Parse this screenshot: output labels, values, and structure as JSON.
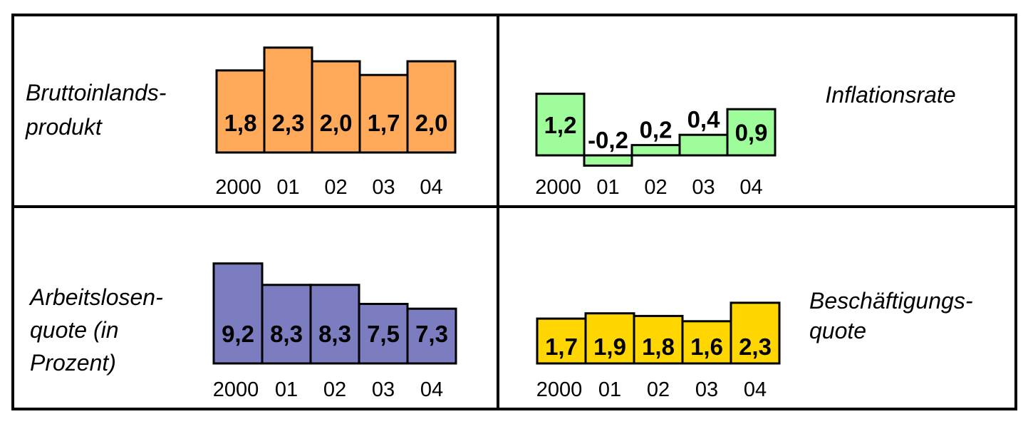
{
  "chart_data": [
    {
      "type": "bar",
      "title_lines": [
        "Bruttoinlands-",
        "produkt"
      ],
      "categories": [
        "2000",
        "01",
        "02",
        "03",
        "04"
      ],
      "values": [
        1.8,
        2.3,
        2.0,
        1.7,
        2.0
      ],
      "value_labels": [
        "1,8",
        "2,3",
        "2,0",
        "1,7",
        "2,0"
      ],
      "color": "#FFAA5A",
      "ylim": [
        0,
        2.5
      ]
    },
    {
      "type": "bar",
      "title_lines": [
        "Inflationsrate"
      ],
      "categories": [
        "2000",
        "01",
        "02",
        "03",
        "04"
      ],
      "values": [
        1.2,
        -0.2,
        0.2,
        0.4,
        0.9
      ],
      "value_labels": [
        "1,2",
        "-0,2",
        "0,2",
        "0,4",
        "0,9"
      ],
      "color": "#9EFC9A",
      "ylim": [
        -0.5,
        1.5
      ]
    },
    {
      "type": "bar",
      "title_lines": [
        "Arbeitslosen-",
        "quote (in",
        "Prozent)"
      ],
      "categories": [
        "2000",
        "01",
        "02",
        "03",
        "04"
      ],
      "values": [
        9.2,
        8.3,
        8.3,
        7.5,
        7.3
      ],
      "value_labels": [
        "9,2",
        "8,3",
        "8,3",
        "7,5",
        "7,3"
      ],
      "color": "#7B7DC0",
      "ylim": [
        5,
        10
      ]
    },
    {
      "type": "bar",
      "title_lines": [
        "Beschäftigungs-",
        "quote"
      ],
      "categories": [
        "2000",
        "01",
        "02",
        "03",
        "04"
      ],
      "values": [
        1.7,
        1.9,
        1.8,
        1.6,
        2.3
      ],
      "value_labels": [
        "1,7",
        "1,9",
        "1,8",
        "1,6",
        "2,3"
      ],
      "color": "#FFD600",
      "ylim": [
        0,
        2.5
      ]
    }
  ]
}
